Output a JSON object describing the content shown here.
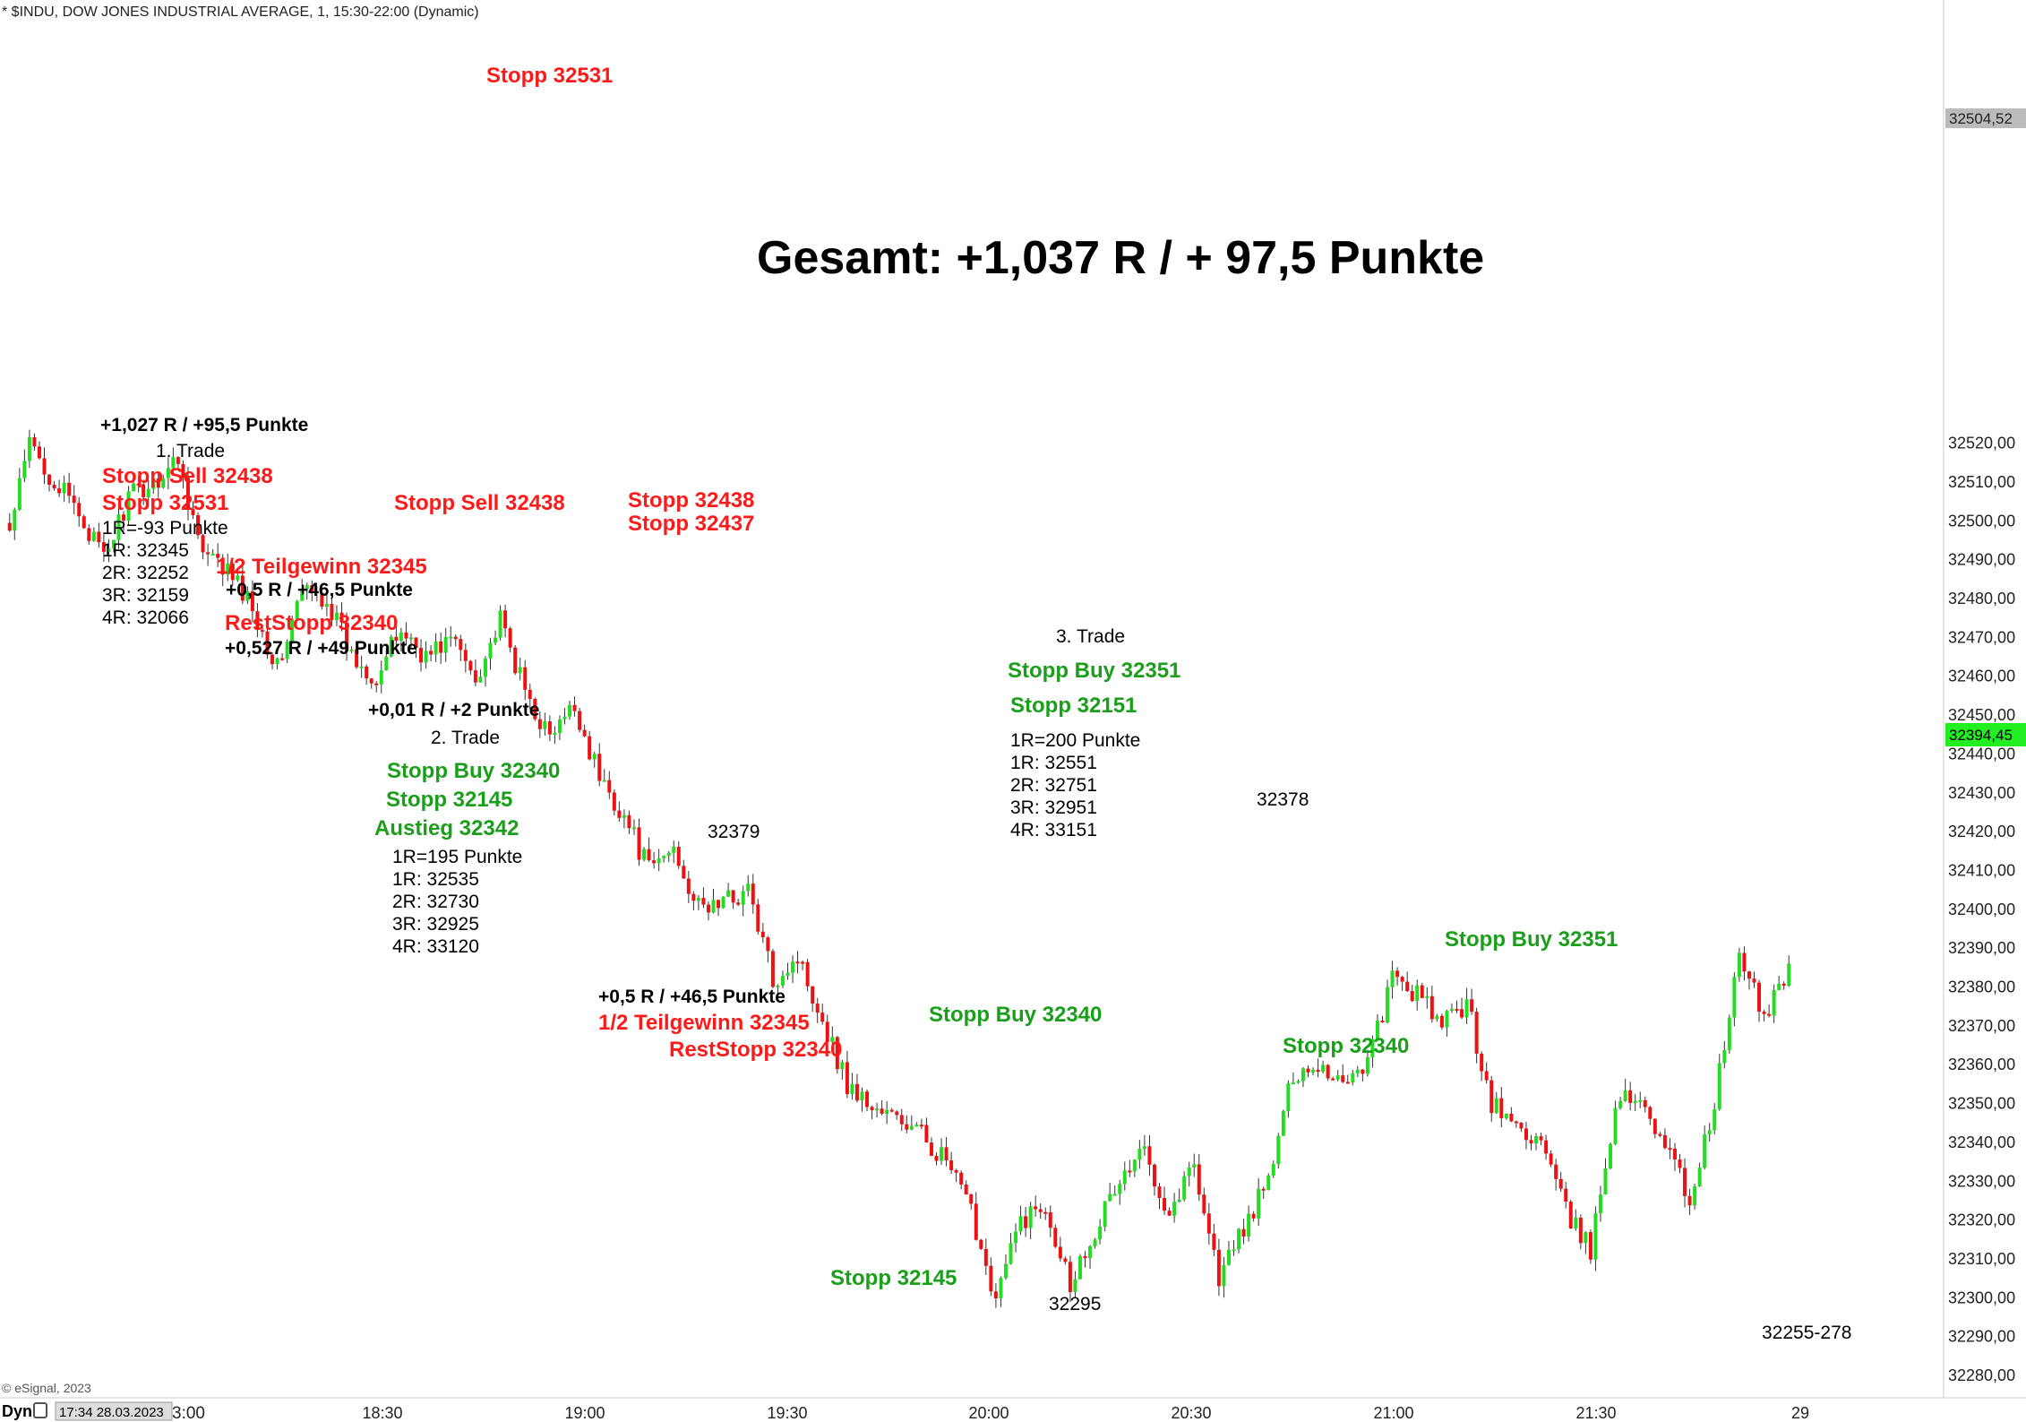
{
  "header": "* $INDU, DOW JONES INDUSTRIAL AVERAGE, 1, 15:30-22:00 (Dynamic)",
  "copyright": "© eSignal, 2023",
  "footer": {
    "dyn": "Dyn",
    "timestamp": "17:34 28.03.2023",
    "first_tick_suffix": "3:00"
  },
  "title": "Gesamt: +1,037 R / + 97,5 Punkte",
  "colors": {
    "up": "#22dd22",
    "down": "#ee1111",
    "red_text": "#ff1a1a",
    "green_text": "#1a9f1a",
    "last_price_bg": "#22ee22",
    "ref_price_bg": "#bbbbbb"
  },
  "annotations": {
    "stopp_top": "Stopp 32531",
    "trade1": {
      "result": "+1,027 R / +95,5 Punkte",
      "label": "1. Trade",
      "stopp_sell": "Stopp Sell 32438",
      "stopp": "Stopp 32531",
      "r_lines": [
        "1R=-93 Punkte",
        "1R: 32345",
        "2R: 32252",
        "3R: 32159",
        "4R: 32066"
      ],
      "teilgewinn": "1/2 Teilgewinn 32345",
      "teil_result": "+0,5 R / +46,5 Punkte",
      "reststopp": "RestStopp 32340",
      "rest_result": "+0,527 R / +49 Punkte"
    },
    "stopp_sell_mid": "Stopp Sell 32438",
    "stopp_32438": "Stopp 32438",
    "stopp_32437": "Stopp 32437",
    "trade2": {
      "result": "+0,01 R / +2 Punkte",
      "label": "2. Trade",
      "stopp_buy": "Stopp Buy 32340",
      "stopp": "Stopp 32145",
      "austieg": "Austieg 32342",
      "r_lines": [
        "1R=195 Punkte",
        "1R: 32535",
        "2R: 32730",
        "3R: 32925",
        "4R: 33120"
      ]
    },
    "low_32379": "32379",
    "second_teil_result": "+0,5 R / +46,5 Punkte",
    "second_teilgewinn": "1/2 Teilgewinn 32345",
    "second_reststopp": "RestStopp 32340",
    "stopp_buy_32340": "Stopp Buy 32340",
    "stopp_32145": "Stopp 32145",
    "low_32295": "32295",
    "trade3": {
      "label": "3. Trade",
      "stopp_buy": "Stopp Buy 32351",
      "stopp": "Stopp 32151",
      "r_lines": [
        "1R=200 Punkte",
        "1R: 32551",
        "2R: 32751",
        "3R: 32951",
        "4R: 33151"
      ]
    },
    "high_32378": "32378",
    "stopp_32340": "Stopp 32340",
    "stopp_buy_32351": "Stopp Buy 32351",
    "range_label": "32255-278"
  },
  "chart_data": {
    "type": "candlestick",
    "timeframe": "1 minute",
    "ylim": [
      32275,
      32525
    ],
    "y_ticks": [
      "32280,00",
      "32290,00",
      "32300,00",
      "32310,00",
      "32320,00",
      "32330,00",
      "32340,00",
      "32350,00",
      "32360,00",
      "32370,00",
      "32380,00",
      "32390,00",
      "32400,00",
      "32410,00",
      "32420,00",
      "32430,00",
      "32440,00",
      "32450,00",
      "32460,00",
      "32470,00",
      "32480,00",
      "32490,00",
      "32500,00",
      "32510,00",
      "32520,00"
    ],
    "x_ticks": [
      "18:30",
      "19:00",
      "19:30",
      "20:00",
      "20:30",
      "21:00",
      "21:30",
      "29"
    ],
    "ref_price": "32504,52",
    "last_price": "32394,45",
    "keypoints": [
      [
        0,
        32497
      ],
      [
        4,
        32520
      ],
      [
        9,
        32510
      ],
      [
        14,
        32502
      ],
      [
        19,
        32490
      ],
      [
        24,
        32506
      ],
      [
        29,
        32510
      ],
      [
        34,
        32516
      ],
      [
        39,
        32491
      ],
      [
        44,
        32487
      ],
      [
        49,
        32478
      ],
      [
        54,
        32462
      ],
      [
        59,
        32482
      ],
      [
        64,
        32480
      ],
      [
        69,
        32465
      ],
      [
        74,
        32460
      ],
      [
        79,
        32472
      ],
      [
        84,
        32465
      ],
      [
        89,
        32470
      ],
      [
        94,
        32460
      ],
      [
        99,
        32474
      ],
      [
        104,
        32456
      ],
      [
        109,
        32444
      ],
      [
        114,
        32452
      ],
      [
        119,
        32434
      ],
      [
        124,
        32424
      ],
      [
        129,
        32410
      ],
      [
        134,
        32416
      ],
      [
        139,
        32400
      ],
      [
        144,
        32402
      ],
      [
        149,
        32405
      ],
      [
        154,
        32382
      ],
      [
        159,
        32388
      ],
      [
        164,
        32372
      ],
      [
        169,
        32355
      ],
      [
        174,
        32349
      ],
      [
        179,
        32346
      ],
      [
        184,
        32342
      ],
      [
        189,
        32335
      ],
      [
        194,
        32322
      ],
      [
        199,
        32300
      ],
      [
        204,
        32320
      ],
      [
        209,
        32324
      ],
      [
        214,
        32304
      ],
      [
        219,
        32318
      ],
      [
        224,
        32330
      ],
      [
        229,
        32338
      ],
      [
        234,
        32322
      ],
      [
        239,
        32335
      ],
      [
        244,
        32305
      ],
      [
        249,
        32318
      ],
      [
        254,
        32330
      ],
      [
        259,
        32358
      ],
      [
        264,
        32360
      ],
      [
        269,
        32356
      ],
      [
        274,
        32361
      ],
      [
        279,
        32382
      ],
      [
        284,
        32378
      ],
      [
        289,
        32370
      ],
      [
        294,
        32376
      ],
      [
        299,
        32350
      ],
      [
        304,
        32344
      ],
      [
        309,
        32340
      ],
      [
        314,
        32322
      ],
      [
        319,
        32312
      ],
      [
        324,
        32350
      ],
      [
        329,
        32352
      ],
      [
        334,
        32340
      ],
      [
        339,
        32325
      ],
      [
        344,
        32350
      ],
      [
        349,
        32388
      ],
      [
        354,
        32372
      ],
      [
        359,
        32386
      ]
    ]
  }
}
